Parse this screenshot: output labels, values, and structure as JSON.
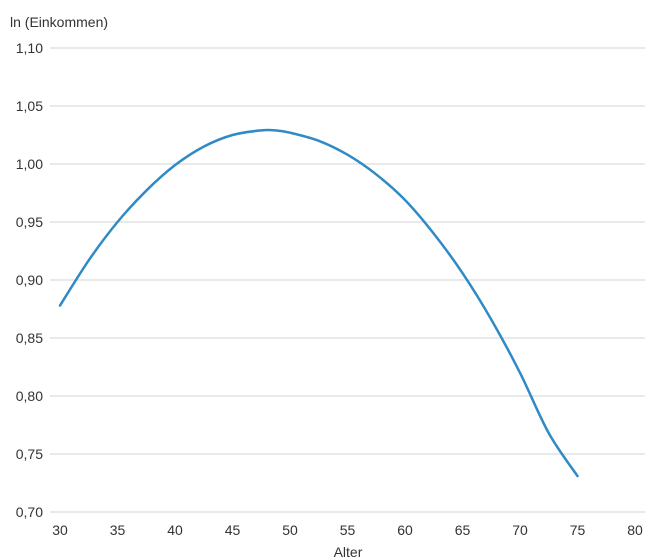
{
  "chart_data": {
    "type": "line",
    "title": "",
    "ylabel": "ln (Einkommen)",
    "xlabel": "Alter",
    "xlim": [
      30,
      80
    ],
    "ylim": [
      0.7,
      1.1
    ],
    "x_ticks": [
      30,
      35,
      40,
      45,
      50,
      55,
      60,
      65,
      70,
      75,
      80
    ],
    "x_tick_labels": [
      "30",
      "35",
      "40",
      "45",
      "50",
      "55",
      "60",
      "65",
      "70",
      "75",
      "80"
    ],
    "y_ticks": [
      0.7,
      0.75,
      0.8,
      0.85,
      0.9,
      0.95,
      1.0,
      1.05,
      1.1
    ],
    "y_tick_labels": [
      "0,70",
      "0,75",
      "0,80",
      "0,85",
      "0,90",
      "0,95",
      "1,00",
      "1,05",
      "1,10"
    ],
    "grid": "horizontal",
    "legend": "none",
    "series": [
      {
        "color": "#2f8ac6",
        "x": [
          30,
          32.5,
          35,
          37.5,
          40,
          42.5,
          45,
          47.5,
          48.7,
          50,
          52.5,
          55,
          57.5,
          60,
          62.5,
          65,
          67.5,
          70,
          72.5,
          75
        ],
        "y": [
          0.878,
          0.917,
          0.95,
          0.977,
          0.999,
          1.015,
          1.025,
          1.029,
          1.029,
          1.027,
          1.02,
          1.008,
          0.991,
          0.969,
          0.94,
          0.906,
          0.866,
          0.82,
          0.768,
          0.731
        ]
      }
    ]
  }
}
